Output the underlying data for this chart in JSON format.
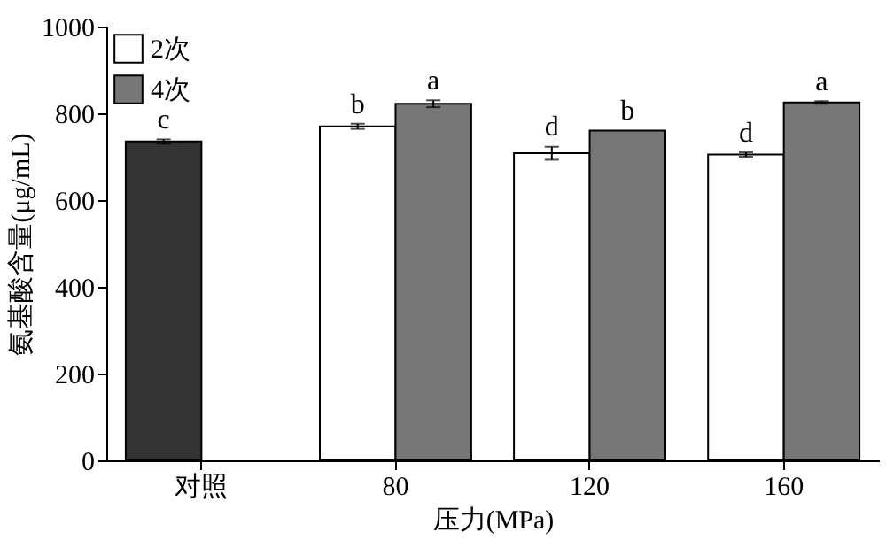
{
  "chart_data": {
    "type": "bar",
    "xlabel": "压力(MPa)",
    "ylabel": "氨基酸含量(μg/mL)",
    "categories": [
      "对照",
      "80",
      "120",
      "160"
    ],
    "series": [
      {
        "color": "#333333",
        "values": [
          735,
          null,
          null,
          null
        ],
        "errors": [
          5,
          null,
          null,
          null
        ]
      },
      {
        "name": "2次",
        "color": "#ffffff",
        "values": [
          null,
          770,
          708,
          705
        ],
        "errors": [
          null,
          6,
          15,
          5
        ]
      },
      {
        "name": "4次",
        "color": "#777777",
        "values": [
          null,
          822,
          760,
          825
        ],
        "errors": [
          null,
          8,
          null,
          3
        ]
      }
    ],
    "ylim": [
      0,
      1000
    ],
    "yticks": [
      0,
      200,
      400,
      600,
      800,
      1000
    ],
    "legend": "top left",
    "grid": false,
    "annotations": [
      {
        "text": "c",
        "x": "对照",
        "y": 745
      },
      {
        "text": "b",
        "x": "80",
        "y": 780
      },
      {
        "text": "a",
        "x": "80",
        "y": 834
      },
      {
        "text": "d",
        "x": "120",
        "y": 728
      },
      {
        "text": "b",
        "x": "120",
        "y": 765
      },
      {
        "text": "d",
        "x": "160",
        "y": 715
      },
      {
        "text": "a",
        "x": "160",
        "y": 832
      }
    ]
  }
}
